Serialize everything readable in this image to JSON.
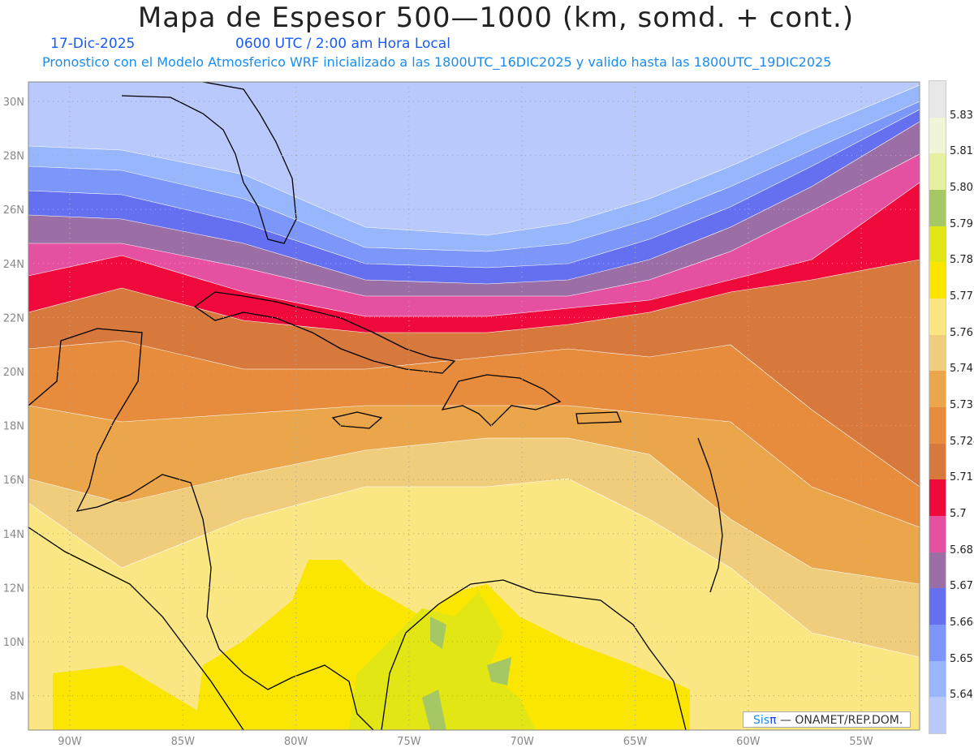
{
  "title": "Mapa de Espesor 500—1000 (km, somd. + cont.)",
  "date": "17-Dic-2025",
  "time": "0600 UTC / 2:00 am Hora Local",
  "subtitle": "Pronostico con el Modelo Atmosferico WRF inicializado a las 1800UTC_16DIC2025 y valido hasta las  1800UTC_19DIC2025",
  "lat_labels": [
    "30N",
    "28N",
    "26N",
    "24N",
    "22N",
    "20N",
    "18N",
    "16N",
    "14N",
    "12N",
    "10N",
    "8N"
  ],
  "lon_labels": [
    "90W",
    "85W",
    "80W",
    "75W",
    "70W",
    "65W",
    "60W",
    "55W"
  ],
  "colorbar": {
    "labels": [
      "5.831",
      "5.819",
      "5.807",
      "5.795",
      "5.783",
      "5.772",
      "5.76",
      "5.748",
      "5.736",
      "5.724",
      "5.712",
      "5.7",
      "5.688",
      "5.676",
      "5.664",
      "5.652",
      "5.64"
    ],
    "colors_top_to_bottom": [
      "#e8e8e8",
      "#f0f5d7",
      "#e6f0a0",
      "#a5c864",
      "#e1e614",
      "#fae600",
      "#fae682",
      "#f0cd7d",
      "#eba54b",
      "#e68c3c",
      "#d7783c",
      "#f00a3c",
      "#e650a0",
      "#9b6ea5",
      "#6470f0",
      "#7d96fa",
      "#98b6fb",
      "#b9c9fb"
    ]
  },
  "credit": {
    "brand_a": "Sis",
    "brand_b": "π",
    "text": " —  ONAMET/REP.DOM."
  }
}
